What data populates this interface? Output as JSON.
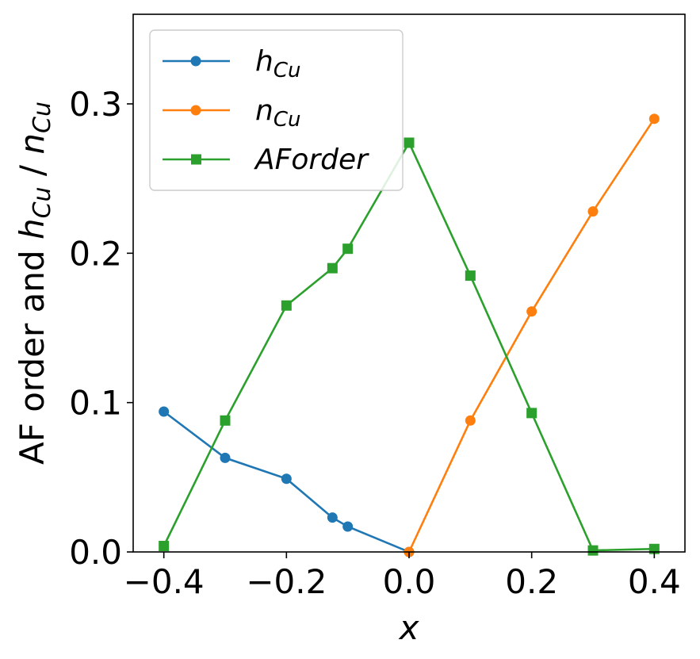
{
  "chart_data": {
    "type": "line",
    "xlabel": "x",
    "ylabel": {
      "prefix": "AF order and ",
      "h": "h",
      "h_sub": "Cu",
      "sep": " / ",
      "n": "n",
      "n_sub": "Cu"
    },
    "xlim": [
      -0.45,
      0.45
    ],
    "ylim": [
      0.0,
      0.36
    ],
    "x_ticks": [
      -0.4,
      -0.2,
      0.0,
      0.2,
      0.4
    ],
    "x_tick_labels": [
      "−0.4",
      "−0.2",
      "0.0",
      "0.2",
      "0.4"
    ],
    "y_ticks": [
      0.0,
      0.1,
      0.2,
      0.3
    ],
    "y_tick_labels": [
      "0.0",
      "0.1",
      "0.2",
      "0.3"
    ],
    "grid": false,
    "legend_position": "top-left",
    "series": [
      {
        "key": "h_cu",
        "name": "h",
        "name_sub": "Cu",
        "color": "#1f77b4",
        "marker": "circle",
        "x": [
          -0.4,
          -0.3,
          -0.2,
          -0.125,
          -0.1,
          0.0
        ],
        "y": [
          0.094,
          0.063,
          0.049,
          0.023,
          0.017,
          0.0
        ]
      },
      {
        "key": "n_cu",
        "name": "n",
        "name_sub": "Cu",
        "color": "#ff7f0e",
        "marker": "circle",
        "x": [
          0.0,
          0.1,
          0.2,
          0.3,
          0.4
        ],
        "y": [
          0.0,
          0.088,
          0.161,
          0.228,
          0.29
        ]
      },
      {
        "key": "af_order",
        "name": "AForder",
        "name_sub": "",
        "color": "#2ca02c",
        "marker": "square",
        "x": [
          -0.4,
          -0.3,
          -0.2,
          -0.125,
          -0.1,
          0.0,
          0.1,
          0.2,
          0.3,
          0.4
        ],
        "y": [
          0.004,
          0.088,
          0.165,
          0.19,
          0.203,
          0.274,
          0.185,
          0.093,
          0.001,
          0.002
        ]
      }
    ]
  }
}
